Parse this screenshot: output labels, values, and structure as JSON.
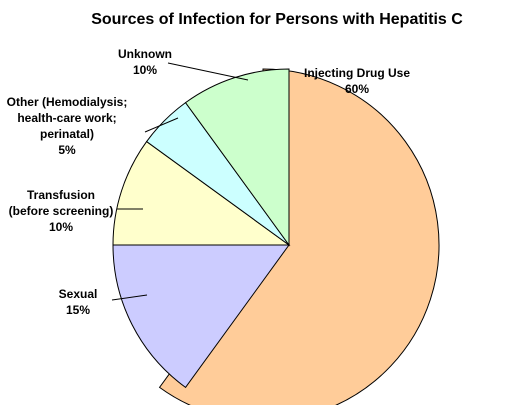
{
  "chart_data": {
    "type": "pie",
    "title": "Sources of Infection for Persons with Hepatitis C",
    "slices": [
      {
        "name": "Injecting Drug Use",
        "value": 60,
        "value_label": "60%",
        "color": "#ffcc99",
        "label_lines": [
          "Injecting Drug Use"
        ]
      },
      {
        "name": "Sexual",
        "value": 15,
        "value_label": "15%",
        "color": "#ccccff",
        "label_lines": [
          "Sexual"
        ]
      },
      {
        "name": "Transfusion (before screening)",
        "value": 10,
        "value_label": "10%",
        "color": "#ffffcc",
        "label_lines": [
          "Transfusion",
          "(before screening)"
        ]
      },
      {
        "name": "Other (Hemodialysis; health-care work; perinatal)",
        "value": 5,
        "value_label": "5%",
        "color": "#ccffff",
        "label_lines": [
          "Other (Hemodialysis;",
          "health-care work;",
          "perinatal)"
        ]
      },
      {
        "name": "Unknown",
        "value": 10,
        "value_label": "10%",
        "color": "#ccffcc",
        "label_lines": [
          "Unknown"
        ]
      }
    ],
    "start_angle_deg": 0,
    "direction": "clockwise",
    "exploded": true,
    "legend": "none"
  }
}
